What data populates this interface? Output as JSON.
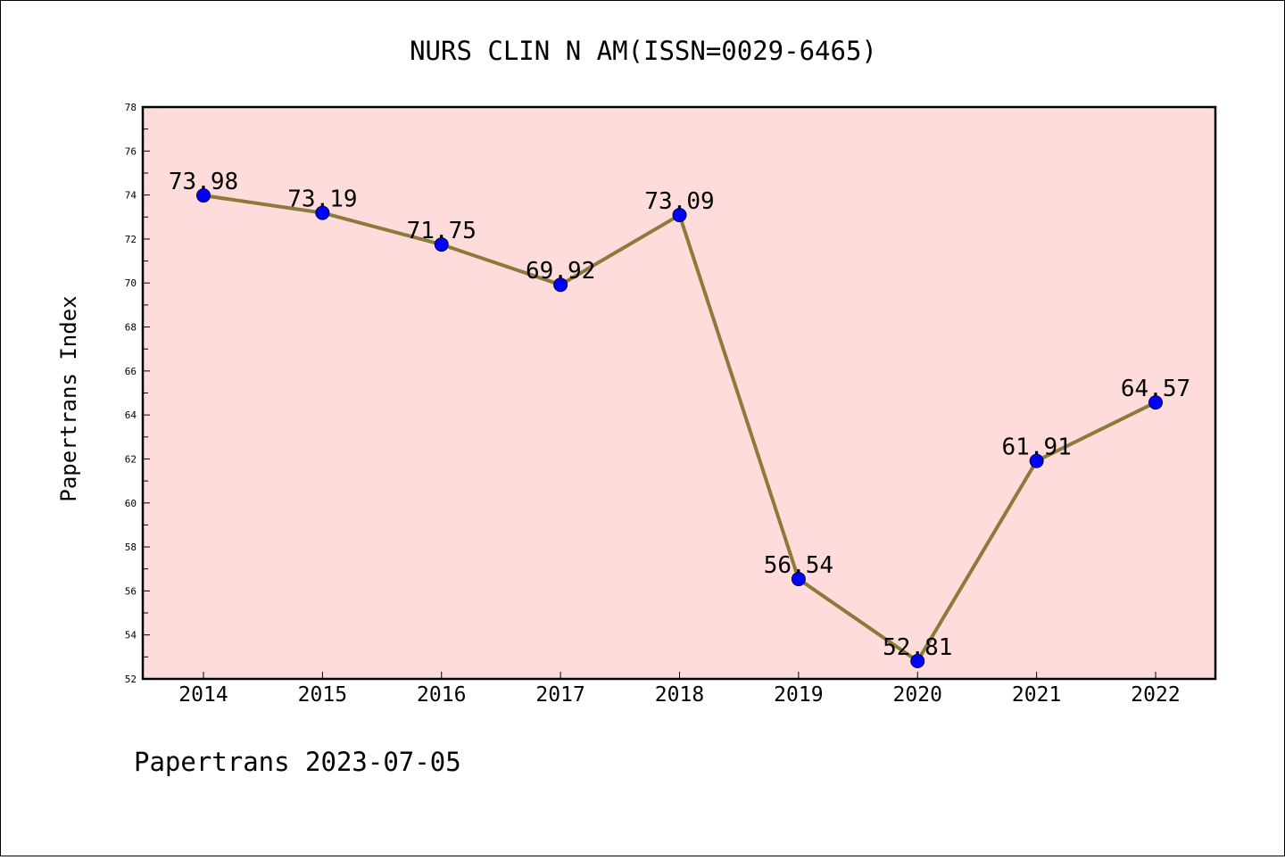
{
  "chart_data": {
    "type": "line",
    "title": "NURS CLIN N AM(ISSN=0029-6465)",
    "xlabel": "",
    "ylabel": "Papertrans Index",
    "categories": [
      "2014",
      "2015",
      "2016",
      "2017",
      "2018",
      "2019",
      "2020",
      "2021",
      "2022"
    ],
    "series": [
      {
        "values": [
          73.98,
          73.19,
          71.75,
          69.92,
          73.09,
          56.54,
          52.81,
          61.91,
          64.57
        ],
        "labels": [
          "73.98",
          "73.19",
          "71.75",
          "69.92",
          "73.09",
          "56.54",
          "52.81",
          "61.91",
          "64.57"
        ]
      }
    ],
    "ylim": [
      52,
      78
    ],
    "yticks": [
      "52",
      "54",
      "56",
      "58",
      "60",
      "62",
      "64",
      "66",
      "68",
      "70",
      "72",
      "74",
      "76",
      "78"
    ],
    "grid": false,
    "colors": {
      "plot_background": "#ffdcdc",
      "line": "#8c7a3a",
      "marker": "#0000ff"
    }
  },
  "footer": {
    "text": "Papertrans 2023-07-05"
  }
}
